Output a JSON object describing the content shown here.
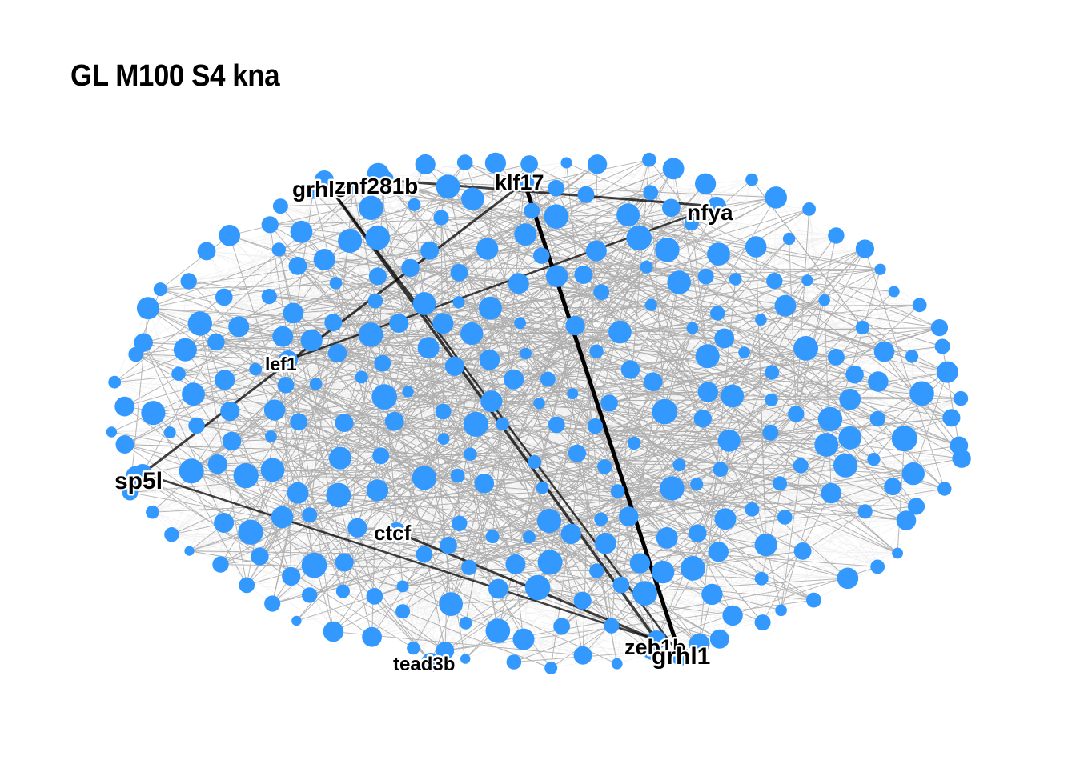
{
  "title": "GL M100 S4 kna",
  "colors": {
    "node": "#3399ff",
    "edge": "#000000",
    "background": "#ffffff",
    "label": "#000000"
  },
  "labels": [
    "grhl3",
    "znf281b",
    "klf17",
    "nfya",
    "lef1",
    "sp5l",
    "ctcf",
    "tead3b",
    "zeb1b",
    "grhl1"
  ],
  "hub_edges": [
    [
      "klf17",
      "grhl1"
    ],
    [
      "grhl3",
      "zeb1b"
    ],
    [
      "znf281b",
      "nfya"
    ],
    [
      "klf17",
      "sp5l"
    ],
    [
      "ctcf",
      "zeb1b"
    ],
    [
      "sp5l",
      "zeb1b"
    ],
    [
      "lef1",
      "nfya"
    ],
    [
      "grhl3",
      "grhl1"
    ]
  ]
}
